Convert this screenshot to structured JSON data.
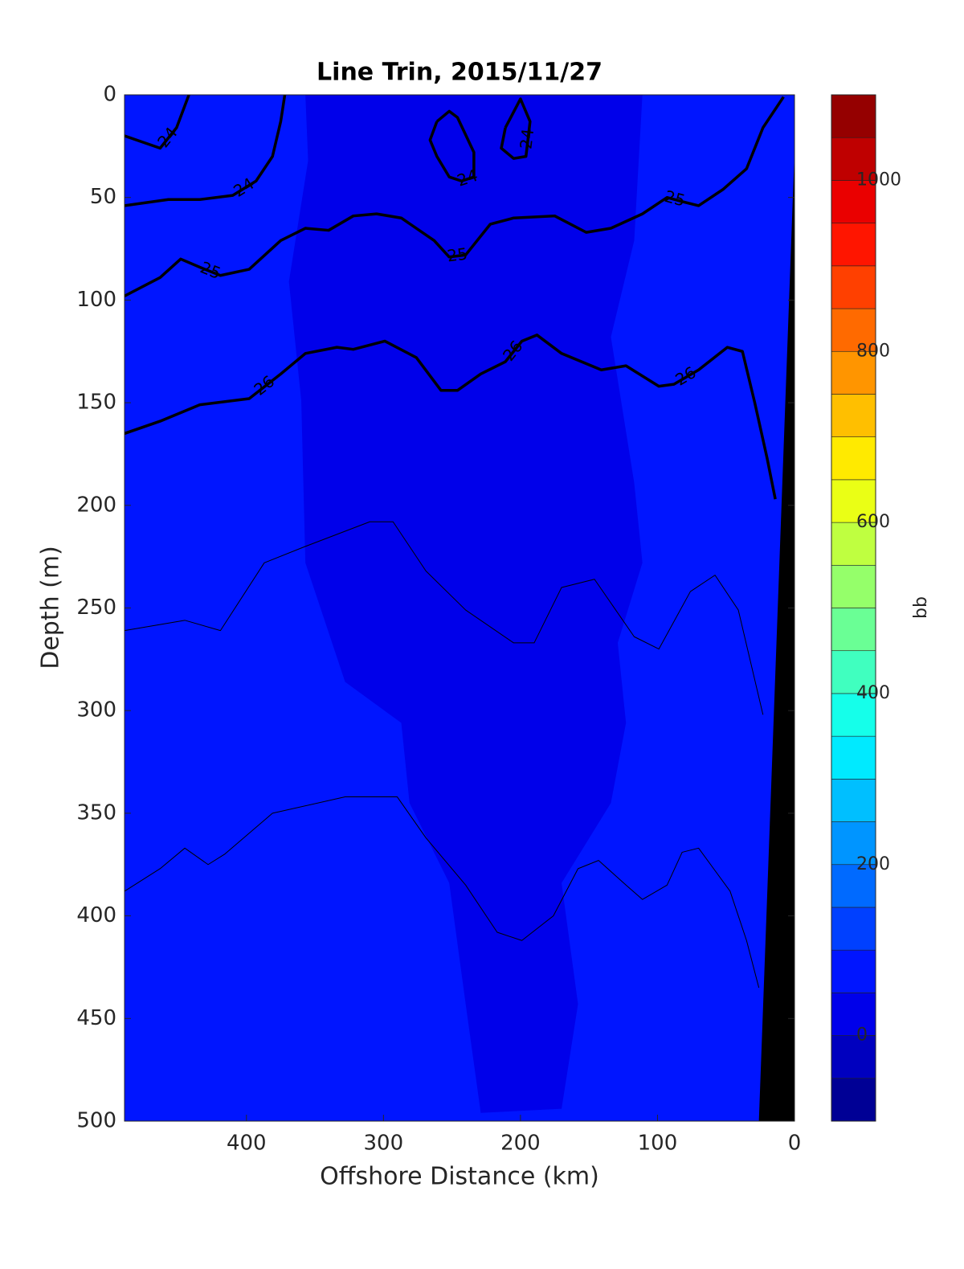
{
  "chart_data": {
    "type": "contour",
    "title": "Line Trin, 2015/11/27",
    "x_label": "Offshore Distance (km)",
    "y_label": "Depth (m)",
    "xlim": [
      489,
      0
    ],
    "xticks": [
      400,
      300,
      200,
      100,
      0
    ],
    "ylim": [
      0,
      500
    ],
    "yticks": [
      0,
      50,
      100,
      150,
      200,
      250,
      300,
      350,
      400,
      450,
      500
    ],
    "background_value": 75,
    "regions": [
      {
        "value": 25,
        "x": [
          357,
          111,
          117,
          134,
          117,
          111,
          129,
          123,
          134,
          170,
          158,
          170,
          229,
          240,
          252,
          281,
          287,
          328,
          357,
          360,
          369,
          355
        ],
        "depth": [
          0,
          0,
          71,
          118,
          189,
          228,
          267,
          306,
          345,
          384,
          443,
          494,
          496,
          443,
          384,
          345,
          306,
          286,
          228,
          149,
          91,
          32
        ]
      }
    ],
    "bathymetry": {
      "color": "#000000",
      "x": [
        0,
        26,
        0
      ],
      "depth": [
        28,
        500,
        500
      ]
    },
    "contours": [
      {
        "level": 24,
        "labeled": true,
        "x": [
          489,
          463,
          451,
          442
        ],
        "depth": [
          20,
          26,
          16,
          0
        ]
      },
      {
        "level": 24,
        "labeled": true,
        "x": [
          489,
          457,
          434,
          410,
          393,
          381,
          375,
          372
        ],
        "depth": [
          54,
          51,
          51,
          49,
          42,
          30,
          13,
          0
        ]
      },
      {
        "level": 24,
        "labeled": true,
        "x": [
          261,
          266,
          261,
          252,
          243,
          234,
          234,
          246,
          252,
          261
        ],
        "depth": [
          13,
          22,
          30,
          40,
          42,
          40,
          28,
          11,
          8,
          13
        ]
      },
      {
        "level": 24,
        "labeled": true,
        "x": [
          211,
          214,
          205,
          196,
          193,
          200,
          211
        ],
        "depth": [
          16,
          26,
          31,
          30,
          13,
          2,
          16
        ]
      },
      {
        "level": 25,
        "labeled": true,
        "x": [
          489,
          463,
          448,
          434,
          419,
          398,
          375,
          357,
          340,
          322,
          305,
          287,
          263,
          252,
          240,
          222,
          205,
          175,
          152,
          134,
          111,
          93,
          82,
          70,
          52,
          35,
          23,
          8
        ],
        "depth": [
          98,
          89,
          80,
          84,
          88,
          85,
          71,
          65,
          66,
          59,
          58,
          60,
          71,
          79,
          78,
          63,
          60,
          59,
          67,
          65,
          58,
          50,
          52,
          54,
          46,
          36,
          16,
          1
        ]
      },
      {
        "level": 26,
        "labeled": true,
        "x": [
          489,
          463,
          434,
          398,
          375,
          357,
          334,
          322,
          299,
          276,
          258,
          246,
          229,
          211,
          199,
          188,
          170,
          141,
          123,
          99,
          88,
          70,
          49,
          38,
          29,
          20,
          14
        ],
        "depth": [
          165,
          159,
          151,
          148,
          136,
          126,
          123,
          124,
          120,
          128,
          144,
          144,
          136,
          130,
          120,
          117,
          126,
          134,
          132,
          142,
          141,
          134,
          123,
          125,
          150,
          177,
          197
        ]
      },
      {
        "level": 26.6,
        "labeled": false,
        "x": [
          489,
          445,
          419,
          387,
          357,
          310,
          293,
          269,
          240,
          205,
          190,
          170,
          146,
          117,
          99,
          76,
          58,
          41,
          23
        ],
        "depth": [
          261,
          256,
          261,
          228,
          220,
          208,
          208,
          232,
          251,
          267,
          267,
          240,
          236,
          264,
          270,
          242,
          234,
          251,
          302
        ]
      },
      {
        "level": 26.9,
        "labeled": false,
        "x": [
          489,
          463,
          445,
          428,
          416,
          381,
          328,
          290,
          269,
          240,
          217,
          199,
          176,
          158,
          143,
          123,
          111,
          93,
          82,
          70,
          47,
          35,
          26
        ],
        "depth": [
          388,
          377,
          367,
          375,
          370,
          350,
          342,
          342,
          362,
          385,
          408,
          412,
          400,
          377,
          373,
          385,
          392,
          385,
          369,
          367,
          388,
          412,
          435
        ]
      }
    ],
    "colorbar": {
      "label": "bb",
      "clim": [
        -100,
        1100
      ],
      "ticks": [
        0,
        200,
        400,
        600,
        800,
        1000
      ],
      "levels": [
        -100,
        -50,
        0,
        50,
        100,
        150,
        200,
        250,
        300,
        350,
        400,
        450,
        500,
        550,
        600,
        650,
        700,
        750,
        800,
        850,
        900,
        950,
        1000,
        1050,
        1100
      ]
    }
  }
}
